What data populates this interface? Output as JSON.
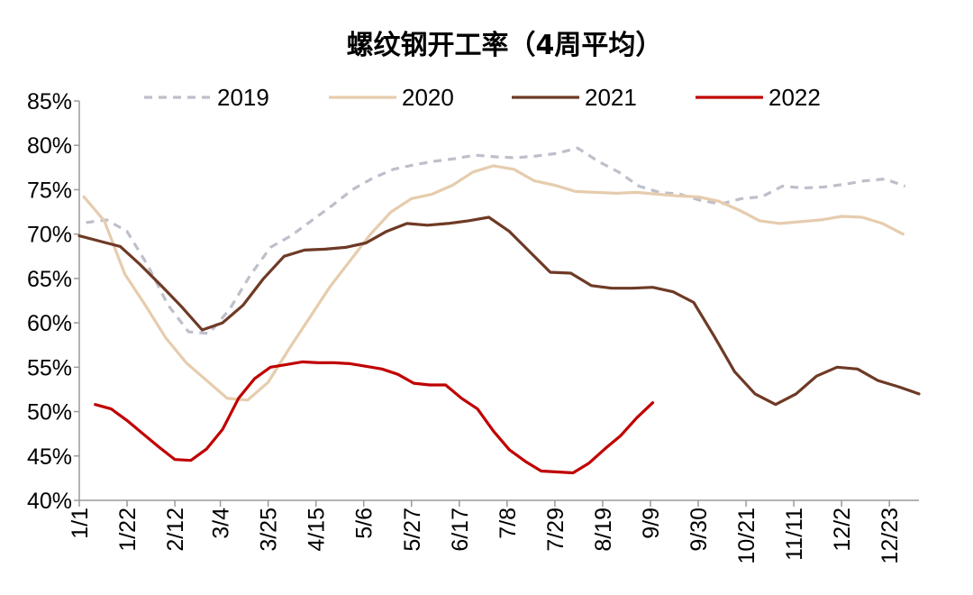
{
  "chart_data": {
    "type": "line",
    "title": "螺纹钢开工率（4周平均）",
    "xlabel": "",
    "ylabel": "",
    "ylim": [
      40,
      85
    ],
    "y_ticks": [
      "40%",
      "45%",
      "50%",
      "55%",
      "60%",
      "65%",
      "70%",
      "75%",
      "80%",
      "85%"
    ],
    "y_tick_values": [
      40,
      45,
      50,
      55,
      60,
      65,
      70,
      75,
      80,
      85
    ],
    "x_ticks": [
      "1/1",
      "1/22",
      "2/12",
      "3/4",
      "3/25",
      "4/15",
      "5/6",
      "5/27",
      "6/17",
      "7/8",
      "7/29",
      "8/19",
      "9/9",
      "9/30",
      "10/21",
      "11/11",
      "12/2",
      "12/23"
    ],
    "x_tick_positions": [
      1,
      22,
      43,
      63,
      84,
      105,
      126,
      147,
      168,
      189,
      210,
      231,
      252,
      273,
      294,
      315,
      336,
      357
    ],
    "x_unit": "day of year",
    "legend_position": "top",
    "series": [
      {
        "name": "2019",
        "color": "#bfbfcb",
        "dash": "dashed",
        "x": [
          4,
          13,
          22,
          31,
          40,
          49,
          58,
          67,
          76,
          85,
          94,
          103,
          112,
          121,
          130,
          139,
          148,
          157,
          166,
          175,
          184,
          193,
          202,
          211,
          220,
          229,
          238,
          247,
          256,
          265,
          274,
          283,
          292,
          301,
          310,
          319,
          328,
          337,
          346,
          355,
          364
        ],
        "y": [
          71.3,
          71.6,
          70.3,
          66.5,
          62.0,
          59.0,
          58.8,
          61.5,
          65.3,
          68.5,
          69.8,
          71.5,
          73.2,
          75.0,
          76.3,
          77.3,
          77.8,
          78.2,
          78.5,
          78.9,
          78.7,
          78.6,
          78.8,
          79.1,
          79.7,
          78.2,
          77.0,
          75.4,
          74.7,
          74.5,
          73.8,
          73.4,
          74.0,
          74.2,
          75.4,
          75.2,
          75.3,
          75.6,
          76.0,
          76.2,
          75.4
        ]
      },
      {
        "name": "2020",
        "color": "#e6ccae",
        "dash": "solid",
        "x": [
          3,
          12,
          21,
          30,
          39,
          48,
          57,
          66,
          75,
          84,
          93,
          102,
          111,
          120,
          129,
          138,
          147,
          156,
          165,
          174,
          183,
          192,
          201,
          210,
          219,
          228,
          237,
          246,
          255,
          264,
          273,
          282,
          291,
          300,
          309,
          318,
          327,
          336,
          345,
          354,
          363
        ],
        "y": [
          74.2,
          71.5,
          65.5,
          62.0,
          58.3,
          55.5,
          53.5,
          51.5,
          51.3,
          53.3,
          57.0,
          60.5,
          64.0,
          67.0,
          70.0,
          72.5,
          74.0,
          74.5,
          75.5,
          77.0,
          77.7,
          77.3,
          76.0,
          75.5,
          74.8,
          74.7,
          74.6,
          74.7,
          74.5,
          74.3,
          74.2,
          73.7,
          72.7,
          71.5,
          71.2,
          71.4,
          71.6,
          72.0,
          71.9,
          71.2,
          70.0
        ]
      },
      {
        "name": "2021",
        "color": "#6e3a26",
        "dash": "solid",
        "x": [
          1,
          10,
          19,
          28,
          37,
          46,
          55,
          64,
          73,
          82,
          91,
          100,
          109,
          118,
          127,
          136,
          145,
          154,
          163,
          172,
          181,
          190,
          199,
          208,
          217,
          226,
          235,
          244,
          253,
          262,
          271,
          280,
          289,
          298,
          307,
          316,
          325,
          334,
          343,
          352,
          361,
          370
        ],
        "y": [
          69.8,
          69.2,
          68.6,
          66.5,
          64.2,
          61.8,
          59.2,
          60.0,
          62.0,
          65.0,
          67.5,
          68.2,
          68.3,
          68.5,
          69.0,
          70.3,
          71.2,
          71.0,
          71.2,
          71.5,
          71.9,
          70.3,
          68.0,
          65.7,
          65.6,
          64.2,
          63.9,
          63.9,
          64.0,
          63.5,
          62.3,
          58.5,
          54.5,
          52.0,
          50.8,
          52.0,
          54.0,
          55.0,
          54.8,
          53.5,
          52.8,
          52.0
        ]
      },
      {
        "name": "2022",
        "color": "#c00000",
        "dash": "solid",
        "x": [
          8,
          15,
          22,
          29,
          36,
          43,
          50,
          57,
          64,
          71,
          78,
          85,
          92,
          99,
          106,
          113,
          120,
          127,
          134,
          141,
          148,
          155,
          162,
          169,
          176,
          183,
          190,
          197,
          204,
          211,
          218,
          225,
          232,
          239,
          246,
          253
        ],
        "y": [
          50.8,
          50.3,
          49.0,
          47.5,
          46.0,
          44.6,
          44.5,
          45.8,
          48.0,
          51.5,
          53.7,
          55.0,
          55.3,
          55.6,
          55.5,
          55.5,
          55.4,
          55.1,
          54.8,
          54.2,
          53.2,
          53.0,
          53.0,
          51.5,
          50.3,
          47.8,
          45.7,
          44.4,
          43.3,
          43.2,
          43.1,
          44.2,
          45.8,
          47.3,
          49.3,
          51.0
        ]
      }
    ]
  }
}
